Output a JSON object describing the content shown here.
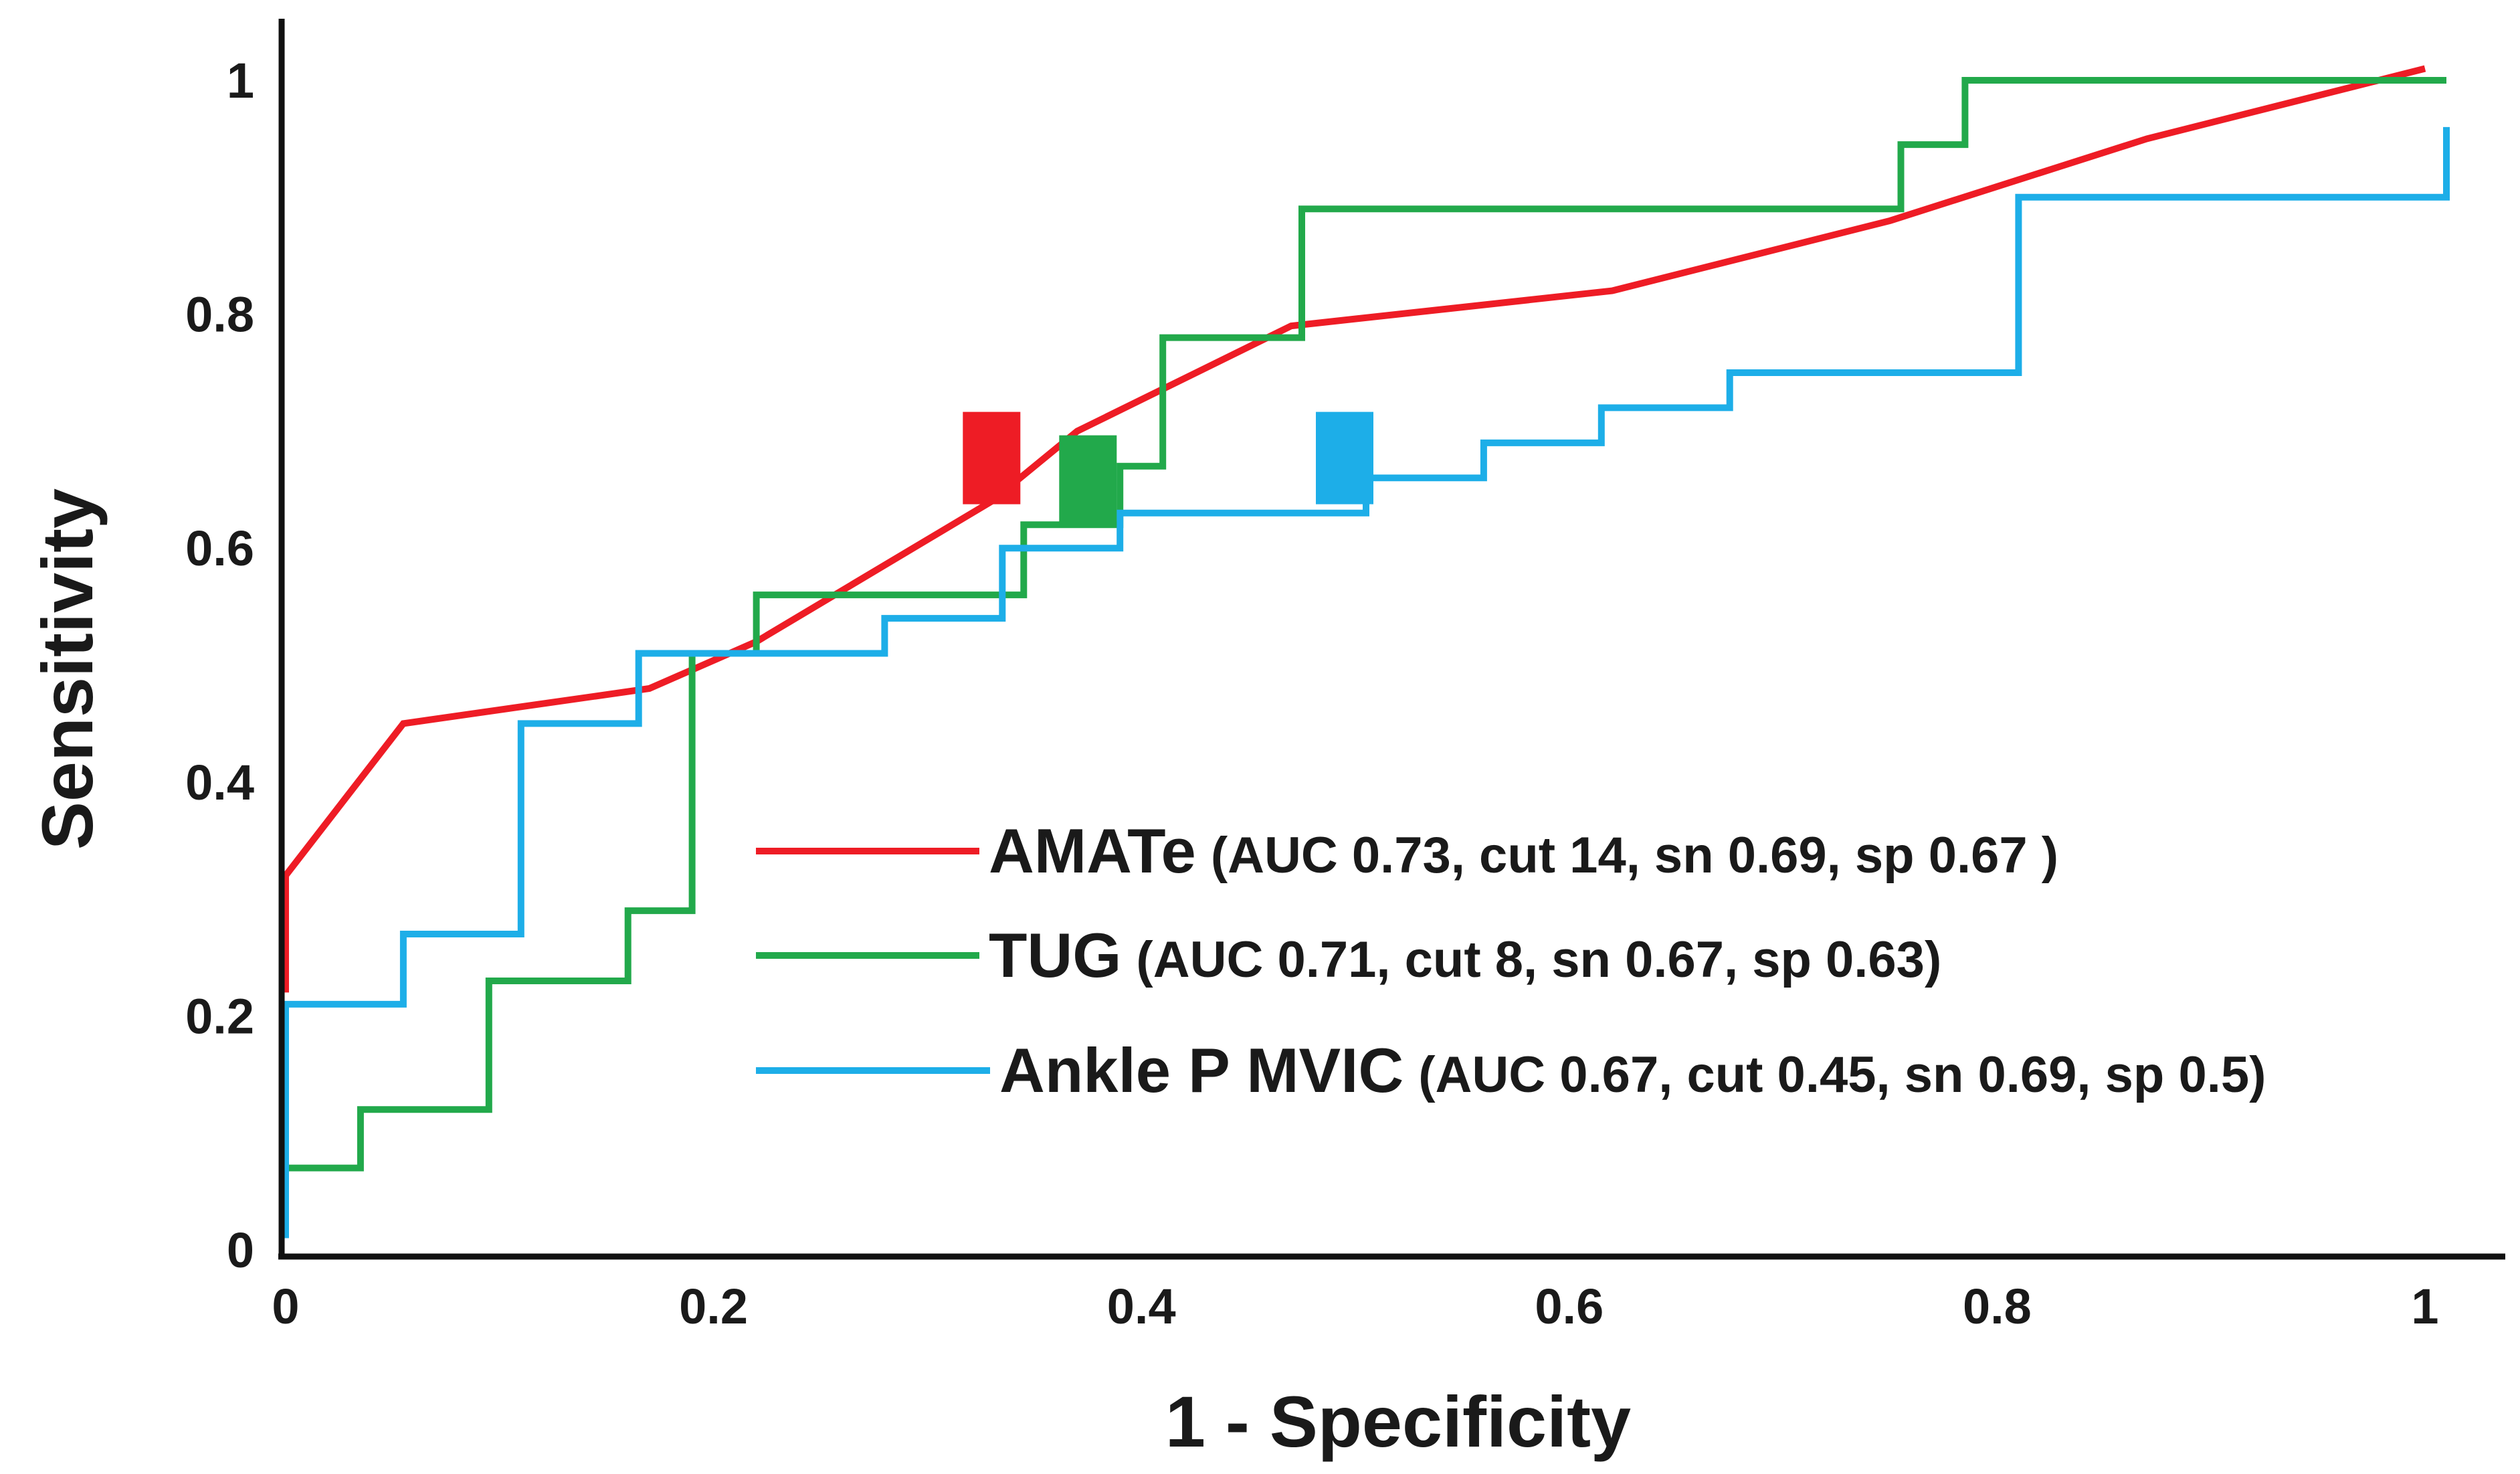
{
  "chart_data": {
    "type": "line",
    "title": "",
    "xlabel": "1 - Specificity",
    "ylabel": "Sensitivity",
    "xlim": [
      0,
      1
    ],
    "ylim": [
      0,
      1
    ],
    "x_ticks": [
      0,
      0.2,
      0.4,
      0.6,
      0.8,
      1
    ],
    "x_tick_labels": [
      "0",
      "0.2",
      "0.4",
      "0.6",
      "0.8",
      "1"
    ],
    "y_ticks": [
      0,
      0.2,
      0.4,
      0.6,
      0.8,
      1
    ],
    "y_tick_labels": [
      "0",
      "0.2",
      "0.4",
      "0.6",
      "0.8",
      "1"
    ],
    "grid": false,
    "legend_position": "bottom-right",
    "series": [
      {
        "name": "AMATe",
        "detail": "(AUC 0.73, cut 14, sn 0.69, sp 0.67 )",
        "color": "#ee1c25",
        "step": false,
        "points": [
          [
            0,
            0.22
          ],
          [
            0,
            0.32
          ],
          [
            0.055,
            0.45
          ],
          [
            0.17,
            0.48
          ],
          [
            0.22,
            0.52
          ],
          [
            0.33,
            0.64
          ],
          [
            0.37,
            0.7
          ],
          [
            0.47,
            0.79
          ],
          [
            0.62,
            0.82
          ],
          [
            0.75,
            0.88
          ],
          [
            0.87,
            0.95
          ],
          [
            1,
            1.01
          ]
        ],
        "marker": {
          "x": 0.33,
          "y": 0.677
        }
      },
      {
        "name": "TUG",
        "detail": "(AUC 0.71, cut 8, sn 0.67, sp 0.63)",
        "color": "#22a94b",
        "step": true,
        "points": [
          [
            0,
            0.01
          ],
          [
            0,
            0.07
          ],
          [
            0.035,
            0.07
          ],
          [
            0.035,
            0.12
          ],
          [
            0.095,
            0.12
          ],
          [
            0.095,
            0.23
          ],
          [
            0.16,
            0.23
          ],
          [
            0.16,
            0.29
          ],
          [
            0.19,
            0.29
          ],
          [
            0.19,
            0.51
          ],
          [
            0.22,
            0.51
          ],
          [
            0.22,
            0.56
          ],
          [
            0.345,
            0.56
          ],
          [
            0.345,
            0.62
          ],
          [
            0.39,
            0.62
          ],
          [
            0.39,
            0.67
          ],
          [
            0.41,
            0.67
          ],
          [
            0.41,
            0.78
          ],
          [
            0.475,
            0.78
          ],
          [
            0.475,
            0.89
          ],
          [
            0.755,
            0.89
          ],
          [
            0.755,
            0.945
          ],
          [
            0.785,
            0.945
          ],
          [
            0.785,
            1.0
          ],
          [
            1.01,
            1.0
          ]
        ],
        "marker": {
          "x": 0.375,
          "y": 0.657
        }
      },
      {
        "name": "Ankle P MVIC",
        "detail": "(AUC 0.67, cut 0.45, sn 0.69, sp 0.5)",
        "color": "#1daee8",
        "step": true,
        "points": [
          [
            0,
            0.01
          ],
          [
            0,
            0.21
          ],
          [
            0.055,
            0.21
          ],
          [
            0.055,
            0.27
          ],
          [
            0.11,
            0.27
          ],
          [
            0.11,
            0.45
          ],
          [
            0.165,
            0.45
          ],
          [
            0.165,
            0.51
          ],
          [
            0.28,
            0.51
          ],
          [
            0.28,
            0.54
          ],
          [
            0.335,
            0.54
          ],
          [
            0.335,
            0.6
          ],
          [
            0.39,
            0.6
          ],
          [
            0.39,
            0.63
          ],
          [
            0.505,
            0.63
          ],
          [
            0.505,
            0.66
          ],
          [
            0.56,
            0.66
          ],
          [
            0.56,
            0.69
          ],
          [
            0.615,
            0.69
          ],
          [
            0.615,
            0.72
          ],
          [
            0.675,
            0.72
          ],
          [
            0.675,
            0.75
          ],
          [
            0.81,
            0.75
          ],
          [
            0.81,
            0.9
          ],
          [
            1.01,
            0.9
          ],
          [
            1.01,
            0.96
          ]
        ],
        "marker": {
          "x": 0.495,
          "y": 0.677
        }
      }
    ]
  }
}
